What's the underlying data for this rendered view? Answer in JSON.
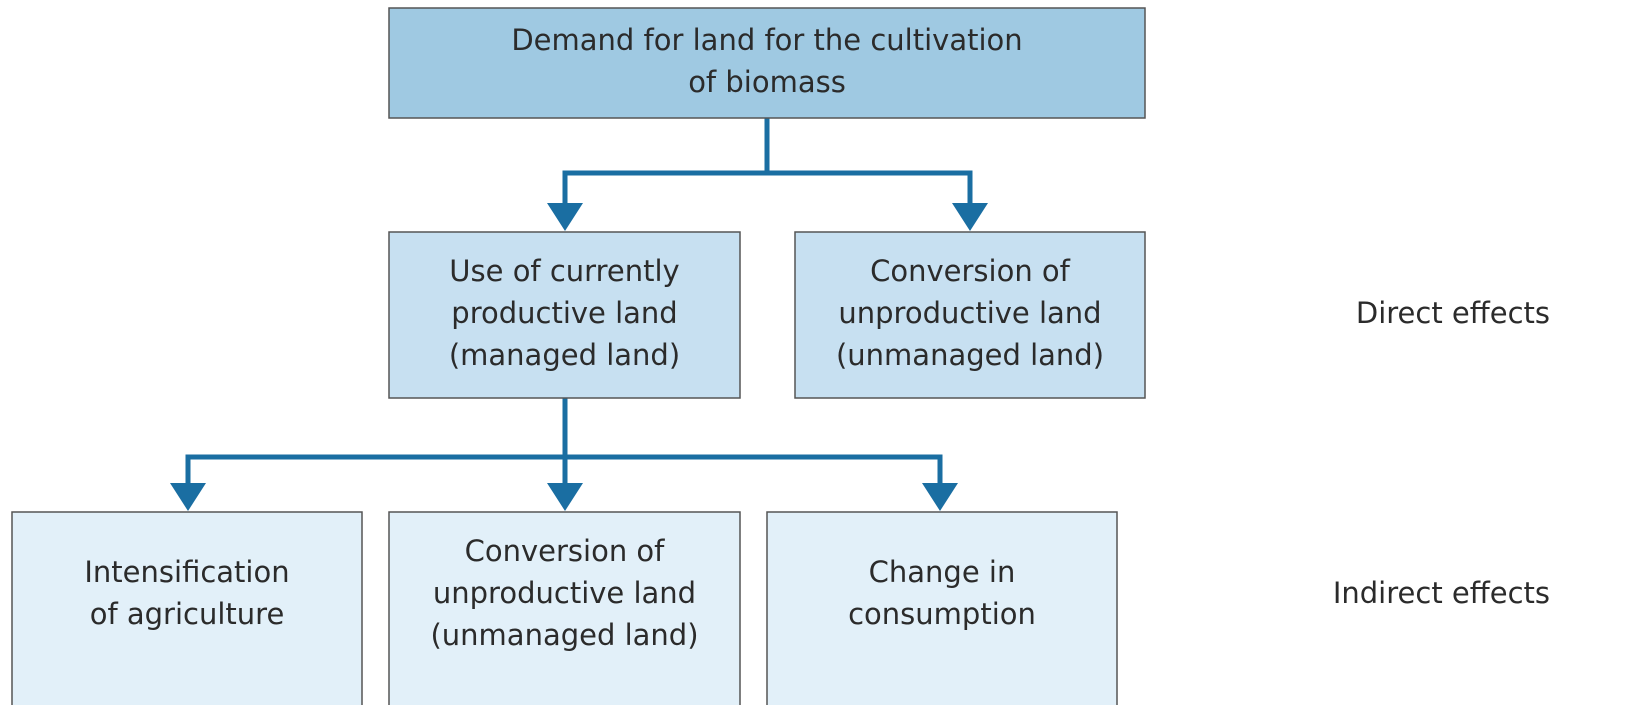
{
  "nodes": [
    {
      "lines": [
        "Demand for land for the cultivation",
        "of biomass"
      ]
    },
    {
      "lines": [
        "Use of currently",
        "productive land",
        "(managed land)"
      ]
    },
    {
      "lines": [
        "Conversion of",
        "unproductive land",
        "(unmanaged land)"
      ]
    },
    {
      "lines": [
        "Intensification",
        "of agriculture"
      ]
    },
    {
      "lines": [
        "Conversion of",
        "unproductive land",
        "(unmanaged land)"
      ]
    },
    {
      "lines": [
        "Change in",
        "consumption"
      ]
    }
  ],
  "levels": [
    "Direct effects",
    "Indirect effects"
  ]
}
